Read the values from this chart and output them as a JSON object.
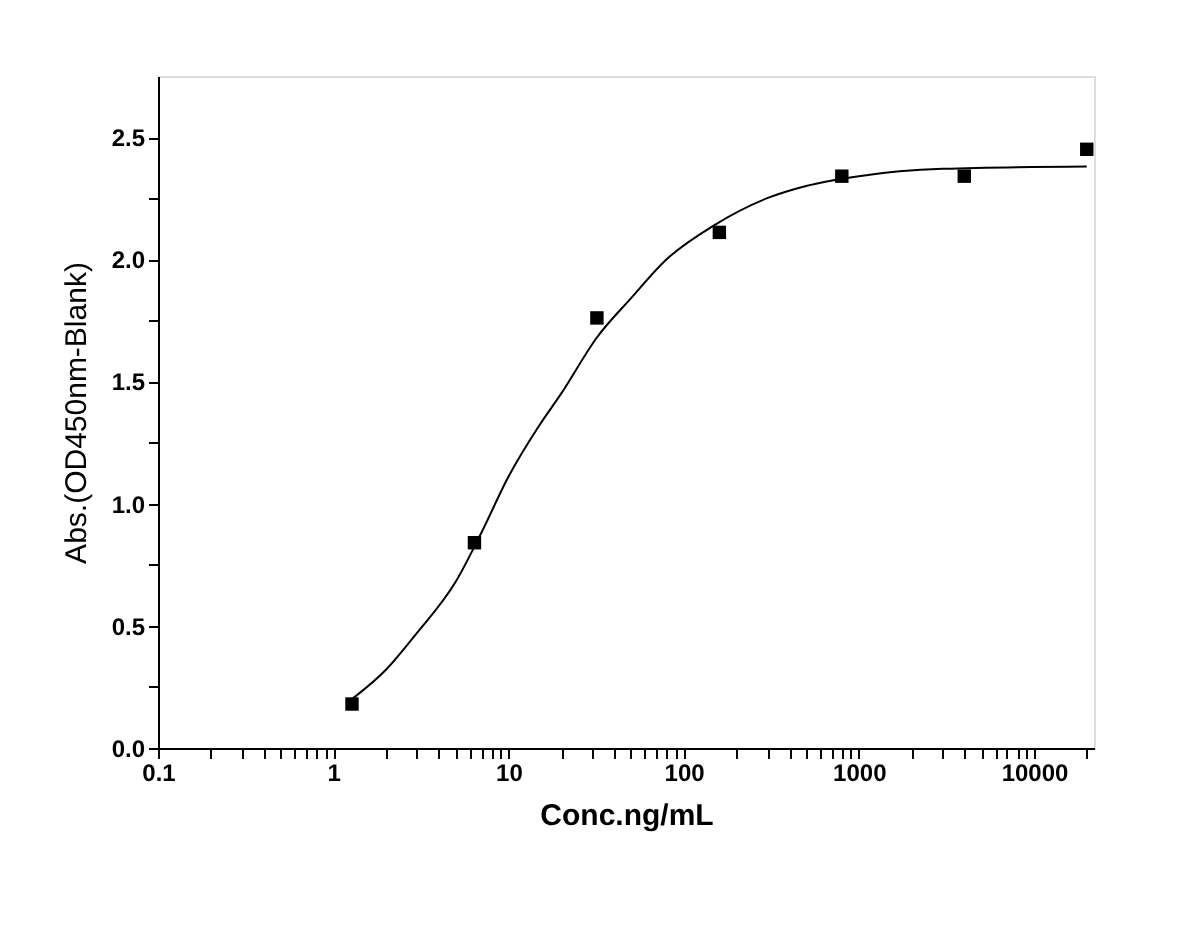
{
  "chart_data": {
    "type": "scatter",
    "xlabel": "Conc.ng/mL",
    "ylabel": "Abs.(OD450nm-Blank)",
    "log": "x",
    "grid": false,
    "xlim": [
      0.1,
      22000
    ],
    "ylim": [
      0,
      2.75
    ],
    "xticks": [
      0.1,
      {
        "value": 0.2,
        "label": null
      },
      {
        "value": 0.3,
        "label": null
      },
      {
        "value": 0.4,
        "label": null
      },
      {
        "value": 0.5,
        "label": null
      },
      {
        "value": 0.6,
        "label": null
      },
      {
        "value": 0.7,
        "label": null
      },
      {
        "value": 0.8,
        "label": null
      },
      {
        "value": 0.9,
        "label": null
      },
      1,
      {
        "value": 2,
        "label": null
      },
      {
        "value": 3,
        "label": null
      },
      {
        "value": 4,
        "label": null
      },
      {
        "value": 5,
        "label": null
      },
      {
        "value": 6,
        "label": null
      },
      {
        "value": 7,
        "label": null
      },
      {
        "value": 8,
        "label": null
      },
      {
        "value": 9,
        "label": null
      },
      10,
      {
        "value": 20,
        "label": null
      },
      {
        "value": 30,
        "label": null
      },
      {
        "value": 40,
        "label": null
      },
      {
        "value": 50,
        "label": null
      },
      {
        "value": 60,
        "label": null
      },
      {
        "value": 70,
        "label": null
      },
      {
        "value": 80,
        "label": null
      },
      {
        "value": 90,
        "label": null
      },
      100,
      {
        "value": 200,
        "label": null
      },
      {
        "value": 300,
        "label": null
      },
      {
        "value": 400,
        "label": null
      },
      {
        "value": 500,
        "label": null
      },
      {
        "value": 600,
        "label": null
      },
      {
        "value": 700,
        "label": null
      },
      {
        "value": 800,
        "label": null
      },
      {
        "value": 900,
        "label": null
      },
      1000,
      {
        "value": 2000,
        "label": null
      },
      {
        "value": 3000,
        "label": null
      },
      {
        "value": 4000,
        "label": null
      },
      {
        "value": 5000,
        "label": null
      },
      {
        "value": 6000,
        "label": null
      },
      {
        "value": 7000,
        "label": null
      },
      {
        "value": 8000,
        "label": null
      },
      {
        "value": 9000,
        "label": null
      },
      10000,
      {
        "value": 20000,
        "label": null
      }
    ],
    "yticks": [
      {
        "value": 0,
        "label": "0.0"
      },
      {
        "value": 0.25,
        "label": null
      },
      0.5,
      {
        "value": 0.75,
        "label": null
      },
      {
        "value": 1,
        "label": "1.0"
      },
      {
        "value": 1.25,
        "label": null
      },
      1.5,
      {
        "value": 1.75,
        "label": null
      },
      {
        "value": 2,
        "label": "2.0"
      },
      {
        "value": 2.25,
        "label": null
      },
      2.5
    ],
    "series": [
      {
        "marker": "square",
        "color": "#000000",
        "x": [
          1.28,
          6.4,
          32,
          160,
          800,
          4000,
          20000
        ],
        "values": [
          0.18,
          0.84,
          1.76,
          2.11,
          2.34,
          2.34,
          2.45
        ]
      },
      {
        "type": "line",
        "marker": "none",
        "line_style": "solid",
        "color": "#000000",
        "x": [
          1.28,
          2,
          3,
          5,
          7,
          10,
          15,
          20,
          32,
          50,
          80,
          150,
          300,
          500,
          1000,
          3000,
          20000
        ],
        "values": [
          0.2,
          0.32,
          0.47,
          0.68,
          0.88,
          1.11,
          1.32,
          1.45,
          1.68,
          1.84,
          2.0,
          2.14,
          2.25,
          2.3,
          2.34,
          2.37,
          2.38
        ]
      }
    ]
  }
}
